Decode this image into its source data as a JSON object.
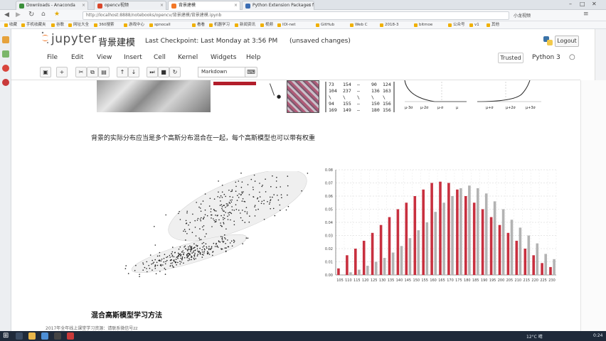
{
  "browser": {
    "tabs": [
      {
        "label": "Downloads - Anaconda",
        "active": false,
        "color": "#3a8f3a"
      },
      {
        "label": "opencv视频",
        "active": false,
        "color": "#d9472b"
      },
      {
        "label": "背景建模",
        "active": true,
        "color": "#f37726"
      },
      {
        "label": "Python Extension Packages f",
        "active": false,
        "color": "#3b6db3"
      }
    ],
    "url": "http://localhost:8888/notebooks/opencv/背景建模/背景建模.ipynb",
    "user_label": "小龙视频",
    "bookmarks": [
      "收藏",
      "手机收藏夹",
      "谷歌",
      "网址大全",
      "360搜索",
      "游戏中心",
      "spnocall",
      "看看",
      "机器学习",
      "新闻资讯",
      "视频",
      "IOI-net",
      "GitHub",
      "Web C",
      "2018-3",
      "bitmoe",
      "公众号",
      "v1",
      "其他"
    ]
  },
  "jupyter": {
    "logo_text": "jupyter",
    "notebook_name": "背景建模",
    "checkpoint": "Last Checkpoint: Last Monday at 3:56 PM",
    "unsaved": "(unsaved changes)",
    "logout": "Logout",
    "trusted": "Trusted",
    "kernel": "Python 3",
    "menu": [
      "File",
      "Edit",
      "View",
      "Insert",
      "Cell",
      "Kernel",
      "Widgets",
      "Help"
    ],
    "toolbar_icons": [
      "save-icon",
      "add-cell-icon",
      "cut-icon",
      "copy-icon",
      "paste-icon",
      "move-up-icon",
      "move-down-icon",
      "run-icon",
      "stop-icon",
      "restart-icon"
    ],
    "cell_type": "Markdown",
    "accent": "#f37726"
  },
  "notebook": {
    "matrix_rows": [
      [
        "73",
        "154",
        "—",
        "90",
        "124"
      ],
      [
        "104",
        "237",
        "—",
        "136",
        "163"
      ],
      [
        "\\",
        "\\",
        "\\",
        "\\",
        "\\"
      ],
      [
        "94",
        "155",
        "—",
        "150",
        "156"
      ],
      [
        "169",
        "149",
        "—",
        "180",
        "156"
      ]
    ],
    "gauss_labels_left": [
      "μ-3σ",
      "μ-2σ",
      "μ-σ",
      "μ"
    ],
    "gauss_labels_right": [
      "μ+σ",
      "μ+2σ",
      "μ+3σ"
    ],
    "paragraph": "背景的实际分布应当是多个高斯分布混合在一起，每个高斯模型也可以带有权重",
    "section_heading": "混合高斯模型学习方法"
  },
  "chart_data": {
    "type": "bar",
    "categories": [
      "105",
      "110",
      "115",
      "120",
      "125",
      "130",
      "135",
      "140",
      "145",
      "150",
      "155",
      "160",
      "165",
      "170",
      "175",
      "180",
      "185",
      "190",
      "195",
      "200",
      "205",
      "210",
      "215",
      "220",
      "225",
      "230"
    ],
    "series": [
      {
        "values": [
          0.005,
          0.015,
          0.02,
          0.026,
          0.032,
          0.038,
          0.044,
          0.05,
          0.055,
          0.06,
          0.065,
          0.07,
          0.071,
          0.07,
          0.065,
          0.06,
          0.055,
          0.05,
          0.044,
          0.038,
          0.032,
          0.026,
          0.02,
          0.015,
          0.009,
          0.006
        ],
        "color": "#c8303f"
      },
      {
        "values": [
          0.0,
          0.002,
          0.004,
          0.007,
          0.01,
          0.013,
          0.017,
          0.022,
          0.028,
          0.034,
          0.04,
          0.048,
          0.055,
          0.06,
          0.066,
          0.068,
          0.066,
          0.062,
          0.056,
          0.05,
          0.042,
          0.036,
          0.03,
          0.024,
          0.016,
          0.012
        ],
        "color": "#b3b3b3"
      }
    ],
    "ylim": [
      0,
      0.08
    ],
    "yticks": [
      "0.00",
      "0.01",
      "0.02",
      "0.03",
      "0.04",
      "0.05",
      "0.06",
      "0.07",
      "0.08"
    ],
    "grid": true
  },
  "taskbar": {
    "status_text": "2017年全年线上课堂学习资源：请联系微信号zz",
    "time": "0:24",
    "date": "",
    "weather": "12°C 晴"
  }
}
